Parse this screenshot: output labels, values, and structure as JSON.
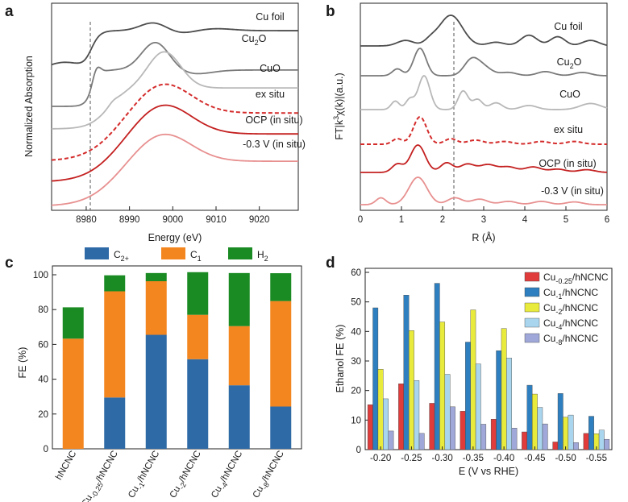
{
  "chart_data": [
    {
      "panel": "a",
      "type": "line",
      "xlabel": "Energy (eV)",
      "ylabel": "Normalized Absorption",
      "xlim": [
        8972,
        9029
      ],
      "xticks": [
        "8980",
        "8990",
        "9000",
        "9010",
        "9020"
      ],
      "reference_line_x": 8981,
      "series": [
        {
          "name": "Cu foil",
          "color": "#4d4d4d",
          "dash": false
        },
        {
          "name": "Cu2O",
          "label_main": "Cu",
          "label_sub": "2",
          "label_tail": "O",
          "color": "#7a7a7a",
          "dash": false
        },
        {
          "name": "CuO",
          "color": "#b8b8b8",
          "dash": false
        },
        {
          "name": "ex situ",
          "color": "#d42b2b",
          "dash": true
        },
        {
          "name": "OCP (in situ)",
          "color": "#c42020",
          "dash": false
        },
        {
          "name": "-0.3 V (in situ)",
          "color": "#e89090",
          "dash": false
        }
      ]
    },
    {
      "panel": "b",
      "type": "line",
      "xlabel": "R (Å)",
      "ylabel": "FT|k³χ(k)|(a.u.)",
      "ylabel_parts": [
        "FT|k",
        "3",
        "χ(k)|(a.u.)"
      ],
      "xlim": [
        0,
        6
      ],
      "xticks": [
        "0",
        "1",
        "2",
        "3",
        "4",
        "5",
        "6"
      ],
      "reference_line_x": 2.25,
      "series": [
        {
          "name": "Cu foil",
          "color": "#4d4d4d",
          "dash": false
        },
        {
          "name": "Cu2O",
          "label_main": "Cu",
          "label_sub": "2",
          "label_tail": "O",
          "color": "#7a7a7a",
          "dash": false
        },
        {
          "name": "CuO",
          "color": "#b8b8b8",
          "dash": false
        },
        {
          "name": "ex situ",
          "color": "#d42b2b",
          "dash": true
        },
        {
          "name": "OCP (in situ)",
          "color": "#c42020",
          "dash": false
        },
        {
          "name": "-0.3 V (in situ)",
          "color": "#e89090",
          "dash": false
        }
      ]
    },
    {
      "panel": "c",
      "type": "bar",
      "stacked": true,
      "ylabel": "FE (%)",
      "ylim": [
        0,
        100
      ],
      "yticks": [
        "0",
        "20",
        "40",
        "60",
        "80",
        "100"
      ],
      "categories": [
        {
          "main": "hNCNC",
          "sub": "",
          "tail": ""
        },
        {
          "main": "Cu",
          "sub": "-0.25",
          "tail": "/hNCNC"
        },
        {
          "main": "Cu",
          "sub": "-1",
          "tail": "/hNCNC"
        },
        {
          "main": "Cu",
          "sub": "-2",
          "tail": "/hNCNC"
        },
        {
          "main": "Cu",
          "sub": "-4",
          "tail": "/hNCNC"
        },
        {
          "main": "Cu",
          "sub": "-8",
          "tail": "/hNCNC"
        }
      ],
      "series": [
        {
          "name": "C2+",
          "label_main": "C",
          "label_sub": "2+",
          "color": "#2e6aa6",
          "values": [
            0,
            29.5,
            65.5,
            51.5,
            36.5,
            24.3
          ]
        },
        {
          "name": "C1",
          "label_main": "C",
          "label_sub": "1",
          "color": "#f4861f",
          "values": [
            63.3,
            61,
            30.8,
            25.5,
            34,
            60.6
          ]
        },
        {
          "name": "H2",
          "label_main": "H",
          "label_sub": "2",
          "color": "#1a8a23",
          "values": [
            18,
            9.2,
            4.7,
            24.5,
            30.5,
            16
          ]
        }
      ],
      "legend": "top"
    },
    {
      "panel": "d",
      "type": "bar",
      "xlabel": "E (V vs RHE)",
      "ylabel": "Ethanol FE (%)",
      "ylim": [
        0,
        60
      ],
      "yticks": [
        "0",
        "10",
        "20",
        "30",
        "40",
        "50",
        "60"
      ],
      "categories": [
        "-0.20",
        "-0.25",
        "-0.30",
        "-0.35",
        "-0.40",
        "-0.45",
        "-0.50",
        "-0.55"
      ],
      "series": [
        {
          "name": "Cu-0.25/hNCNC",
          "label_main": "Cu",
          "label_sub": "-0.25",
          "label_tail": "/hNCNC",
          "color": "#e03c3c",
          "values": [
            15.2,
            22.3,
            15.7,
            13,
            10.3,
            6,
            2.6,
            5.5
          ]
        },
        {
          "name": "Cu-1/hNCNC",
          "label_main": "Cu",
          "label_sub": "-1",
          "label_tail": "/hNCNC",
          "color": "#2e7fbf",
          "values": [
            48,
            52.3,
            56.3,
            36.4,
            33.5,
            21.8,
            19,
            11.3
          ]
        },
        {
          "name": "Cu-2/hNCNC",
          "label_main": "Cu",
          "label_sub": "-2",
          "label_tail": "/hNCNC",
          "color": "#e8ea3c",
          "values": [
            27.2,
            40.3,
            43.2,
            47.3,
            41,
            18.8,
            11,
            5.4
          ]
        },
        {
          "name": "Cu-4/hNCNC",
          "label_main": "Cu",
          "label_sub": "-4",
          "label_tail": "/hNCNC",
          "color": "#a9d6ee",
          "values": [
            17.2,
            23.4,
            25.5,
            29,
            31,
            14.3,
            11.7,
            6.6
          ]
        },
        {
          "name": "Cu-8/hNCNC",
          "label_main": "Cu",
          "label_sub": "-8",
          "label_tail": "/hNCNC",
          "color": "#9fa8d8",
          "values": [
            6.3,
            5.5,
            14.5,
            8.6,
            7.3,
            8.7,
            2.4,
            3.5
          ]
        }
      ],
      "legend": "top-right"
    }
  ]
}
